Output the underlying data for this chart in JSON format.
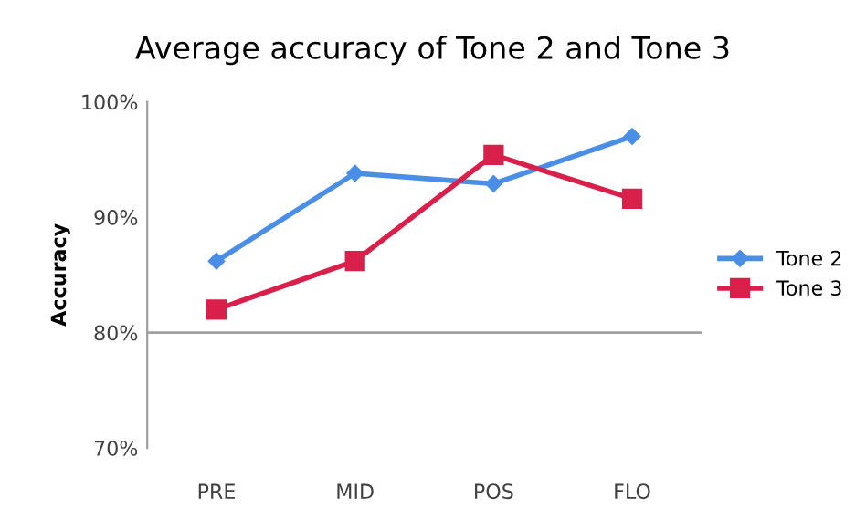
{
  "chart_data": {
    "type": "line",
    "title": "Average accuracy of Tone 2 and Tone 3",
    "ylabel": "Accuracy",
    "categories": [
      "PRE",
      "MID",
      "POS",
      "FLO"
    ],
    "series": [
      {
        "name": "Tone 2",
        "color": "#4a8ee6",
        "marker": "diamond",
        "values": [
          86.2,
          93.8,
          92.9,
          97.0
        ]
      },
      {
        "name": "Tone 3",
        "color": "#d8204a",
        "marker": "square",
        "values": [
          82.0,
          86.2,
          95.4,
          91.6
        ]
      }
    ],
    "ylim": [
      70,
      100
    ],
    "yticks": [
      {
        "value": 70,
        "label": "70%"
      },
      {
        "value": 80,
        "label": "80%"
      },
      {
        "value": 90,
        "label": "90%"
      },
      {
        "value": 100,
        "label": "100%"
      }
    ],
    "ref_lines": [
      {
        "axis": "y",
        "value": 80,
        "color": "#a0a0a0"
      }
    ],
    "grid": false,
    "legend": "right"
  }
}
